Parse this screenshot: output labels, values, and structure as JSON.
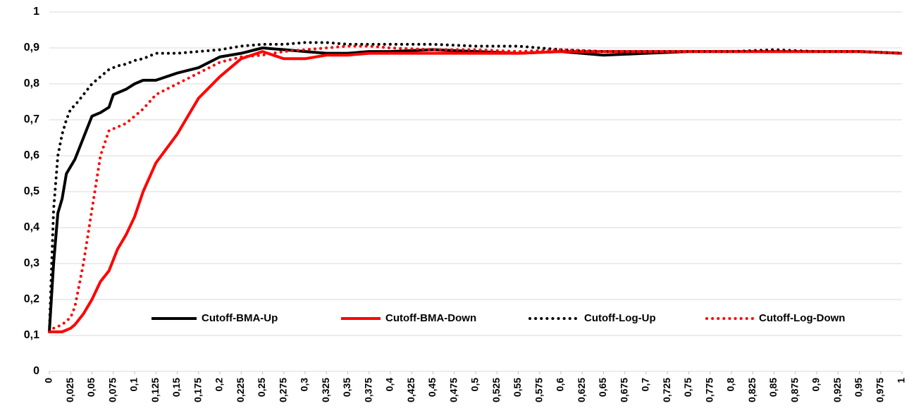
{
  "chart_data": {
    "type": "line",
    "x": [
      0,
      0.005,
      0.01,
      0.015,
      0.02,
      0.025,
      0.03,
      0.04,
      0.05,
      0.06,
      0.07,
      0.075,
      0.08,
      0.09,
      0.1,
      0.11,
      0.125,
      0.15,
      0.175,
      0.2,
      0.225,
      0.25,
      0.275,
      0.3,
      0.325,
      0.35,
      0.375,
      0.4,
      0.45,
      0.5,
      0.55,
      0.6,
      0.65,
      0.7,
      0.75,
      0.8,
      0.85,
      0.9,
      0.95,
      1
    ],
    "series": [
      {
        "name": "Cutoff-BMA-Up",
        "color": "#000000",
        "line_style": "solid",
        "values": [
          0.11,
          0.3,
          0.44,
          0.48,
          0.55,
          0.57,
          0.59,
          0.65,
          0.71,
          0.72,
          0.735,
          0.77,
          0.775,
          0.785,
          0.8,
          0.81,
          0.81,
          0.83,
          0.845,
          0.875,
          0.885,
          0.9,
          0.895,
          0.89,
          0.885,
          0.885,
          0.89,
          0.89,
          0.895,
          0.89,
          0.885,
          0.89,
          0.88,
          0.885,
          0.89,
          0.89,
          0.89,
          0.89,
          0.89,
          0.885
        ]
      },
      {
        "name": "Cutoff-BMA-Down",
        "color": "#ff0000",
        "line_style": "solid",
        "values": [
          0.11,
          0.11,
          0.11,
          0.11,
          0.115,
          0.12,
          0.13,
          0.16,
          0.2,
          0.25,
          0.28,
          0.31,
          0.34,
          0.38,
          0.43,
          0.5,
          0.58,
          0.66,
          0.76,
          0.82,
          0.87,
          0.89,
          0.87,
          0.87,
          0.88,
          0.88,
          0.885,
          0.885,
          0.885,
          0.885,
          0.885,
          0.89,
          0.89,
          0.89,
          0.89,
          0.89,
          0.89,
          0.89,
          0.89,
          0.885
        ]
      },
      {
        "name": "Cutoff-Log-Up",
        "color": "#000000",
        "line_style": "dotted",
        "values": [
          0.11,
          0.45,
          0.6,
          0.66,
          0.7,
          0.73,
          0.74,
          0.77,
          0.8,
          0.82,
          0.84,
          0.845,
          0.85,
          0.855,
          0.865,
          0.87,
          0.885,
          0.885,
          0.89,
          0.895,
          0.905,
          0.91,
          0.91,
          0.915,
          0.915,
          0.91,
          0.91,
          0.91,
          0.91,
          0.905,
          0.905,
          0.895,
          0.89,
          0.89,
          0.89,
          0.89,
          0.895,
          0.89,
          0.89,
          0.885
        ]
      },
      {
        "name": "Cutoff-Log-Down",
        "color": "#ff0000",
        "line_style": "dotted",
        "values": [
          0.11,
          0.12,
          0.125,
          0.13,
          0.14,
          0.15,
          0.18,
          0.3,
          0.45,
          0.6,
          0.67,
          0.675,
          0.68,
          0.69,
          0.71,
          0.73,
          0.77,
          0.8,
          0.83,
          0.86,
          0.875,
          0.88,
          0.89,
          0.895,
          0.9,
          0.905,
          0.905,
          0.9,
          0.895,
          0.895,
          0.89,
          0.895,
          0.89,
          0.89,
          0.89,
          0.89,
          0.89,
          0.89,
          0.89,
          0.885
        ]
      }
    ],
    "xlim": [
      0,
      1
    ],
    "xticks": [
      0,
      {
        "value": 0.025,
        "label": "0,025"
      },
      {
        "value": 0.05,
        "label": "0,05"
      },
      {
        "value": 0.075,
        "label": "0,075"
      },
      {
        "value": 0.1,
        "label": "0,1"
      },
      {
        "value": 0.125,
        "label": "0,125"
      },
      {
        "value": 0.15,
        "label": "0,15"
      },
      {
        "value": 0.175,
        "label": "0,175"
      },
      {
        "value": 0.2,
        "label": "0,2"
      },
      {
        "value": 0.225,
        "label": "0,225"
      },
      {
        "value": 0.25,
        "label": "0,25"
      },
      {
        "value": 0.275,
        "label": "0,275"
      },
      {
        "value": 0.3,
        "label": "0,3"
      },
      {
        "value": 0.325,
        "label": "0,325"
      },
      {
        "value": 0.35,
        "label": "0,35"
      },
      {
        "value": 0.375,
        "label": "0,375"
      },
      {
        "value": 0.4,
        "label": "0,4"
      },
      {
        "value": 0.425,
        "label": "0,425"
      },
      {
        "value": 0.45,
        "label": "0,45"
      },
      {
        "value": 0.475,
        "label": "0,475"
      },
      {
        "value": 0.5,
        "label": "0,5"
      },
      {
        "value": 0.525,
        "label": "0,525"
      },
      {
        "value": 0.55,
        "label": "0,55"
      },
      {
        "value": 0.575,
        "label": "0,575"
      },
      {
        "value": 0.6,
        "label": "0,6"
      },
      {
        "value": 0.625,
        "label": "0,625"
      },
      {
        "value": 0.65,
        "label": "0,65"
      },
      {
        "value": 0.675,
        "label": "0,675"
      },
      {
        "value": 0.7,
        "label": "0,7"
      },
      {
        "value": 0.725,
        "label": "0,725"
      },
      {
        "value": 0.75,
        "label": "0,75"
      },
      {
        "value": 0.775,
        "label": "0,775"
      },
      {
        "value": 0.8,
        "label": "0,8"
      },
      {
        "value": 0.825,
        "label": "0,825"
      },
      {
        "value": 0.85,
        "label": "0,85"
      },
      {
        "value": 0.875,
        "label": "0,875"
      },
      {
        "value": 0.9,
        "label": "0,9"
      },
      {
        "value": 0.925,
        "label": "0,925"
      },
      {
        "value": 0.95,
        "label": "0,95"
      },
      {
        "value": 0.975,
        "label": "0,975"
      },
      1
    ],
    "ylim": [
      0,
      1
    ],
    "yticks": [
      0,
      {
        "value": 0.1,
        "label": "0,1"
      },
      {
        "value": 0.2,
        "label": "0,2"
      },
      {
        "value": 0.3,
        "label": "0,3"
      },
      {
        "value": 0.4,
        "label": "0,4"
      },
      {
        "value": 0.5,
        "label": "0,5"
      },
      {
        "value": 0.6,
        "label": "0,6"
      },
      {
        "value": 0.7,
        "label": "0,7"
      },
      {
        "value": 0.8,
        "label": "0,8"
      },
      {
        "value": 0.9,
        "label": "0,9"
      },
      1
    ],
    "grid": true,
    "legend": "bottom"
  }
}
